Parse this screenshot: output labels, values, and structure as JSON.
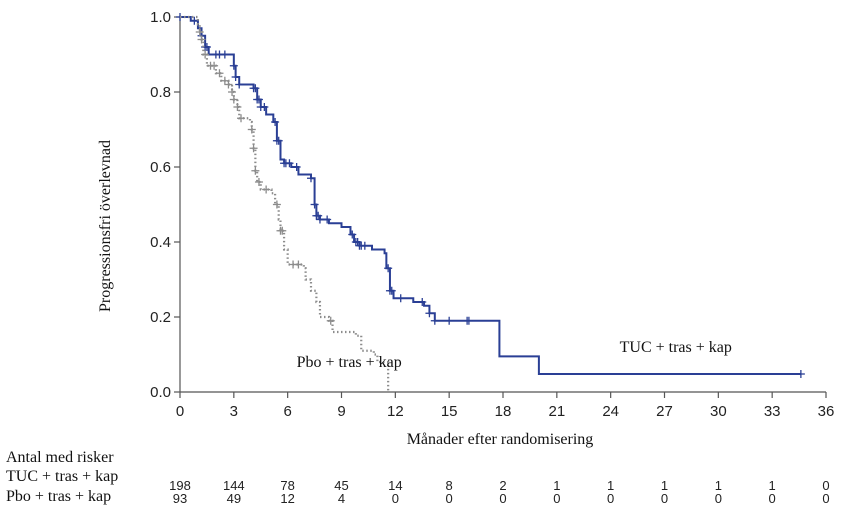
{
  "chart_data": {
    "type": "line",
    "subtype": "kaplan-meier",
    "title": "",
    "xlabel": "Månader efter randomisering",
    "ylabel": "Progressionsfri överlevnad",
    "xlim": [
      0,
      36
    ],
    "ylim": [
      0,
      1.0
    ],
    "xticks": [
      0,
      3,
      6,
      9,
      12,
      15,
      18,
      21,
      24,
      27,
      30,
      33,
      36
    ],
    "yticks": [
      0.0,
      0.2,
      0.4,
      0.6,
      0.8,
      1.0
    ],
    "ytick_labels": [
      "0.0",
      "0.2",
      "0.4",
      "0.6",
      "0.8",
      "1.0"
    ],
    "grid": false,
    "series": [
      {
        "name": "TUC + tras + kap",
        "color": "#2a3f95",
        "style": "solid",
        "steps": [
          [
            0,
            1.0
          ],
          [
            0.6,
            0.99
          ],
          [
            1.0,
            0.97
          ],
          [
            1.2,
            0.95
          ],
          [
            1.4,
            0.92
          ],
          [
            1.6,
            0.9
          ],
          [
            3.0,
            0.87
          ],
          [
            3.1,
            0.84
          ],
          [
            3.3,
            0.82
          ],
          [
            4.1,
            0.81
          ],
          [
            4.3,
            0.78
          ],
          [
            4.5,
            0.76
          ],
          [
            4.8,
            0.74
          ],
          [
            5.2,
            0.72
          ],
          [
            5.4,
            0.67
          ],
          [
            5.6,
            0.62
          ],
          [
            5.8,
            0.61
          ],
          [
            6.2,
            0.6
          ],
          [
            6.6,
            0.58
          ],
          [
            7.3,
            0.57
          ],
          [
            7.5,
            0.5
          ],
          [
            7.6,
            0.47
          ],
          [
            7.8,
            0.46
          ],
          [
            8.3,
            0.45
          ],
          [
            9.0,
            0.44
          ],
          [
            9.5,
            0.42
          ],
          [
            9.7,
            0.4
          ],
          [
            10.0,
            0.39
          ],
          [
            10.7,
            0.38
          ],
          [
            11.4,
            0.37
          ],
          [
            11.5,
            0.33
          ],
          [
            11.7,
            0.27
          ],
          [
            11.9,
            0.25
          ],
          [
            13.0,
            0.24
          ],
          [
            13.6,
            0.23
          ],
          [
            13.9,
            0.21
          ],
          [
            14.2,
            0.19
          ],
          [
            17.8,
            0.095
          ],
          [
            20.0,
            0.048
          ],
          [
            34.6,
            0.048
          ]
        ],
        "censor": [
          0,
          0.8,
          1.2,
          1.4,
          1.5,
          2.0,
          2.2,
          2.5,
          3.0,
          3.1,
          3.3,
          4.1,
          4.2,
          4.3,
          4.4,
          4.5,
          4.7,
          5.3,
          5.4,
          5.5,
          5.8,
          5.9,
          6.1,
          6.5,
          7.3,
          7.5,
          7.6,
          7.7,
          7.8,
          8.2,
          9.6,
          9.8,
          9.9,
          10.0,
          10.1,
          10.3,
          11.6,
          11.7,
          11.8,
          12.3,
          13.5,
          13.9,
          14.2,
          15.0,
          16.0,
          16.1,
          34.6
        ],
        "label": {
          "text": "TUC + tras + kap",
          "x": 24.5,
          "y": 0.12
        },
        "at_risk": [
          198,
          144,
          78,
          45,
          14,
          8,
          2,
          1,
          1,
          1,
          1,
          1,
          0
        ]
      },
      {
        "name": "Pbo + tras + kap",
        "color": "#8c8c8c",
        "style": "dotted",
        "steps": [
          [
            0,
            1.0
          ],
          [
            1.0,
            0.98
          ],
          [
            1.1,
            0.96
          ],
          [
            1.2,
            0.94
          ],
          [
            1.3,
            0.9
          ],
          [
            1.5,
            0.87
          ],
          [
            2.0,
            0.85
          ],
          [
            2.3,
            0.83
          ],
          [
            2.7,
            0.82
          ],
          [
            2.9,
            0.8
          ],
          [
            3.0,
            0.78
          ],
          [
            3.2,
            0.76
          ],
          [
            3.3,
            0.73
          ],
          [
            3.9,
            0.72
          ],
          [
            4.0,
            0.7
          ],
          [
            4.1,
            0.65
          ],
          [
            4.2,
            0.59
          ],
          [
            4.3,
            0.56
          ],
          [
            4.5,
            0.54
          ],
          [
            5.1,
            0.53
          ],
          [
            5.3,
            0.5
          ],
          [
            5.5,
            0.46
          ],
          [
            5.6,
            0.43
          ],
          [
            5.8,
            0.38
          ],
          [
            6.0,
            0.34
          ],
          [
            6.9,
            0.33
          ],
          [
            7.0,
            0.3
          ],
          [
            7.3,
            0.27
          ],
          [
            7.6,
            0.24
          ],
          [
            7.8,
            0.2
          ],
          [
            8.3,
            0.19
          ],
          [
            8.5,
            0.16
          ],
          [
            9.8,
            0.15
          ],
          [
            10.1,
            0.11
          ],
          [
            10.8,
            0.1
          ],
          [
            11.0,
            0.08
          ],
          [
            11.6,
            0.08
          ],
          [
            11.6,
            0.0
          ]
        ],
        "censor": [
          1.1,
          1.2,
          1.4,
          1.7,
          1.9,
          2.2,
          2.5,
          2.7,
          2.9,
          3.0,
          3.2,
          3.4,
          4.0,
          4.1,
          4.2,
          4.4,
          4.8,
          5.4,
          5.6,
          5.7,
          6.3,
          6.6,
          8.4
        ],
        "label": {
          "text": "Pbo + tras + kap",
          "x": 6.5,
          "y": 0.08
        },
        "at_risk": [
          93,
          49,
          12,
          4,
          0,
          0,
          0,
          0,
          0,
          0,
          0,
          0,
          0
        ]
      }
    ],
    "risk_table": {
      "title": "Antal med risker",
      "rows": [
        {
          "label": "TUC + tras + kap",
          "values": [
            198,
            144,
            78,
            45,
            14,
            8,
            2,
            1,
            1,
            1,
            1,
            1,
            0
          ]
        },
        {
          "label": "Pbo + tras + kap",
          "values": [
            93,
            49,
            12,
            4,
            0,
            0,
            0,
            0,
            0,
            0,
            0,
            0,
            0
          ]
        }
      ]
    }
  }
}
